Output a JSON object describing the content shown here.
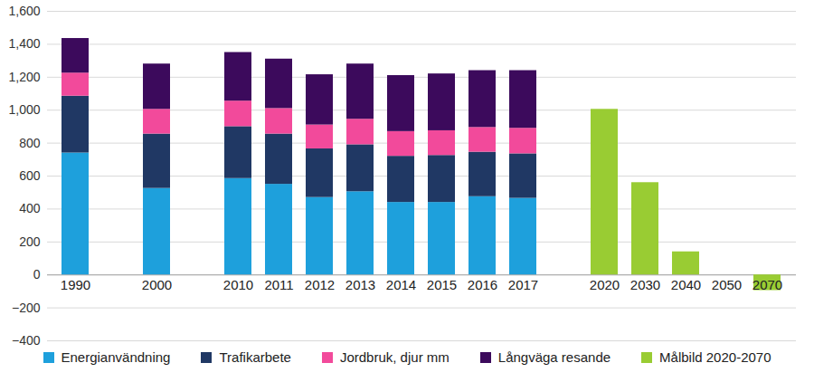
{
  "chart_data": {
    "type": "bar",
    "stacked": true,
    "grid": true,
    "legend": "bottom",
    "categories": [
      "1990",
      null,
      "2000",
      null,
      "2010",
      "2011",
      "2012",
      "2013",
      "2014",
      "2015",
      "2016",
      "2017",
      null,
      "2020",
      "2030",
      "2040",
      "2050",
      "2070"
    ],
    "series": [
      {
        "name": "Energianvändning",
        "color": "#1ea0dc",
        "values": [
          740,
          null,
          525,
          null,
          585,
          550,
          470,
          505,
          440,
          440,
          475,
          465,
          null,
          null,
          null,
          null,
          null,
          null
        ]
      },
      {
        "name": "Trafikarbete",
        "color": "#203864",
        "values": [
          345,
          null,
          330,
          null,
          315,
          305,
          295,
          285,
          280,
          285,
          270,
          270,
          null,
          null,
          null,
          null,
          null,
          null
        ]
      },
      {
        "name": "Jordbruk, djur mm",
        "color": "#f24a9b",
        "values": [
          140,
          null,
          150,
          null,
          155,
          155,
          145,
          155,
          150,
          150,
          150,
          155,
          null,
          null,
          null,
          null,
          null,
          null
        ]
      },
      {
        "name": "Långväga resande",
        "color": "#3c0a5c",
        "values": [
          210,
          null,
          275,
          null,
          295,
          300,
          305,
          335,
          340,
          345,
          345,
          350,
          null,
          null,
          null,
          null,
          null,
          null
        ]
      },
      {
        "name": "Målbild 2020-2070",
        "color": "#99cc33",
        "values": [
          null,
          null,
          null,
          null,
          null,
          null,
          null,
          null,
          null,
          null,
          null,
          null,
          null,
          1005,
          560,
          140,
          0,
          -95
        ]
      }
    ],
    "ylim": [
      -400,
      1600
    ],
    "yticks": [
      -400,
      -200,
      0,
      200,
      400,
      600,
      800,
      1000,
      1200,
      1400,
      1600
    ]
  }
}
